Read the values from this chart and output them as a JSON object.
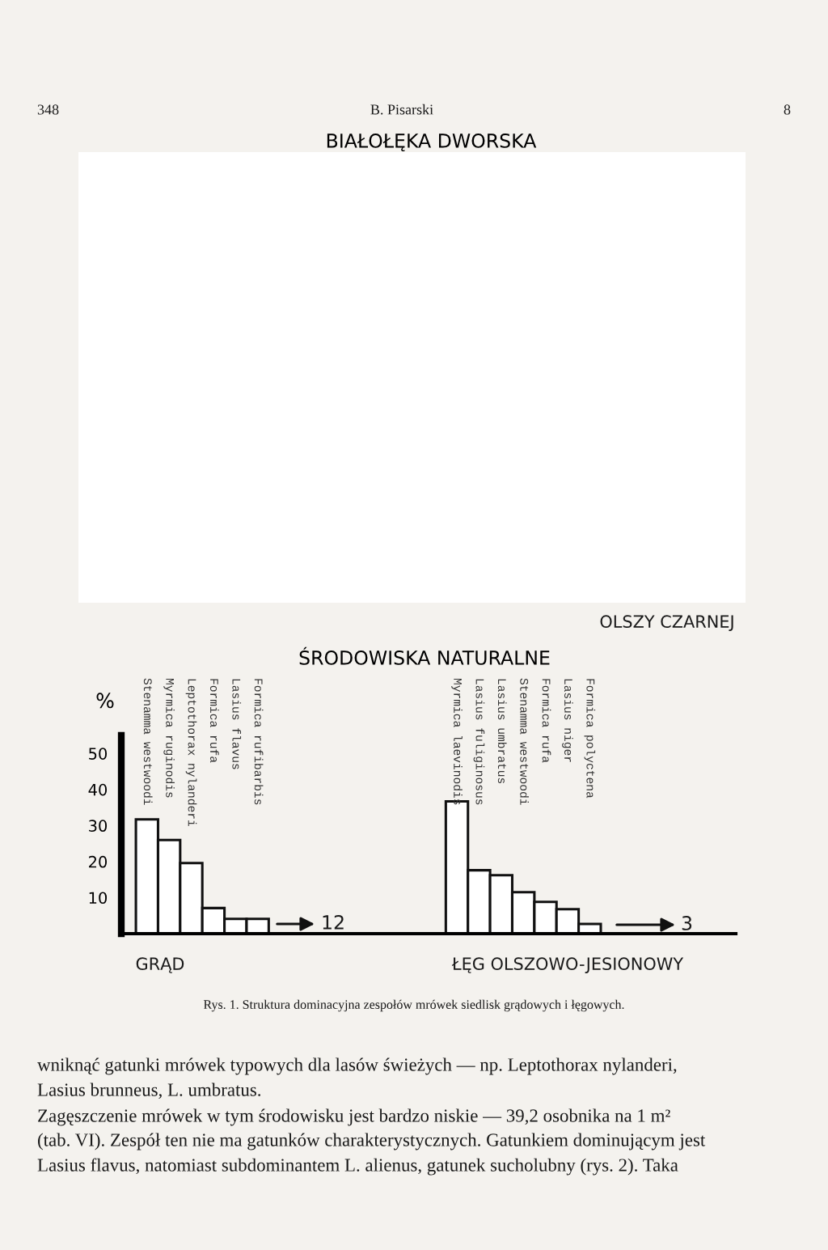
{
  "chart_data": {
    "type": "bar",
    "title": "BIAŁOŁĘKA DWORSKA",
    "subtitle": "ŚRODOWISKA NATURALNE",
    "ylabel": "%",
    "categories": [
      "Stenamma westwoodi",
      "Myrmica ruginodis",
      "Leptothorax nylanderi",
      "Formica rufa",
      "Lasius flavus",
      "Formica rufibarbis",
      null,
      null,
      null,
      null,
      null,
      null,
      null,
      null,
      "Myrmica laevinodis",
      "Lasius fuliginosus",
      "Lasius umbratus",
      "Stenamma westwoodi",
      "Formica rufa",
      "Lasius niger",
      "Formica polyctena"
    ],
    "values": [
      31.7,
      26,
      19.6,
      7.1,
      4.1,
      4.1,
      null,
      null,
      null,
      null,
      null,
      null,
      null,
      null,
      36.7,
      17.6,
      16.2,
      11.5,
      8.8,
      6.8,
      2.7
    ],
    "color": "#ffffff",
    "ylim": [
      0,
      55
    ],
    "yticks": [
      10,
      20,
      30,
      40,
      50
    ],
    "grid": false,
    "legend": false,
    "annotations": [
      "348",
      "B. Pisarski",
      "8",
      "OLSZY CZARNEJ",
      "12",
      "3",
      "GRĄD",
      "ŁĘG OLSZOWO-JESIONOWY",
      "Rys. 1. Struktura dominacyjna zespołów mrówek siedlisk grądowych i łęgowych.",
      "wniknąć gatunki mrówek typowych dla lasów świeżych — np. Leptothorax nylanderi,",
      "Lasius brunneus, L. umbratus.",
      "Zagęszczenie mrówek w tym środowisku jest bardzo niskie — 39,2 osobnika na 1 m²",
      "(tab. VI). Zespół ten nie ma gatunków charakterystycznych. Gatunkiem dominującym jest",
      "Lasius flavus, natomiast subdominantem L. alienus, gatunek sucholubny (rys. 2). Taka"
    ]
  }
}
